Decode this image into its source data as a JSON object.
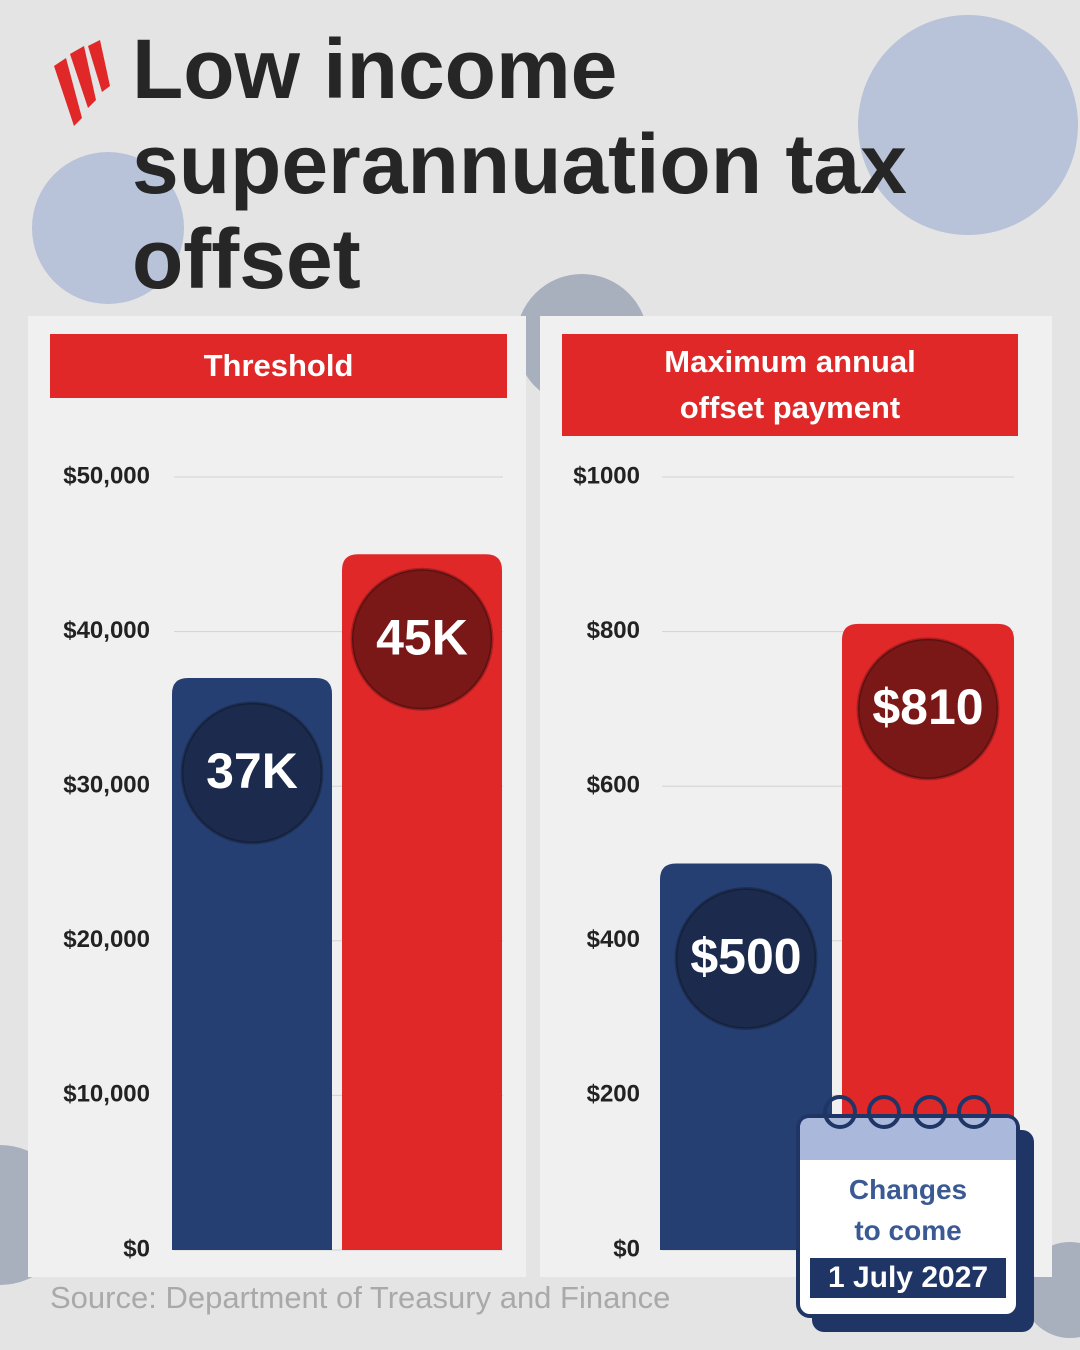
{
  "title": "Low income superannuation tax offset",
  "source": "Source: Department of Treasury and Finance",
  "calendar": {
    "line1": "Changes",
    "line2": "to come",
    "date": "1 July 2027"
  },
  "chart_data": [
    {
      "type": "bar",
      "title": "Threshold",
      "categories": [
        null,
        null
      ],
      "values": [
        37000,
        45000
      ],
      "value_labels": [
        "37K",
        "45K"
      ],
      "colors": [
        "#263f72",
        "#e02828"
      ],
      "ylim": [
        0,
        50000
      ],
      "yticks": [
        {
          "value": 0,
          "label": "$0"
        },
        {
          "value": 10000,
          "label": "$10,000"
        },
        {
          "value": 20000,
          "label": "$20,000"
        },
        {
          "value": 30000,
          "label": "$30,000"
        },
        {
          "value": 40000,
          "label": "$40,000"
        },
        {
          "value": 50000,
          "label": "$50,000"
        }
      ],
      "grid": true
    },
    {
      "type": "bar",
      "title": "Maximum annual offset payment",
      "categories": [
        null,
        null
      ],
      "values": [
        500,
        810
      ],
      "value_labels": [
        "$500",
        "$810"
      ],
      "colors": [
        "#263f72",
        "#e02828"
      ],
      "ylim": [
        0,
        1000
      ],
      "yticks": [
        {
          "value": 0,
          "label": "$0"
        },
        {
          "value": 200,
          "label": "$200"
        },
        {
          "value": 400,
          "label": "$400"
        },
        {
          "value": 600,
          "label": "$600"
        },
        {
          "value": 800,
          "label": "$800"
        },
        {
          "value": 1000,
          "label": "$1000"
        }
      ],
      "grid": true
    }
  ]
}
